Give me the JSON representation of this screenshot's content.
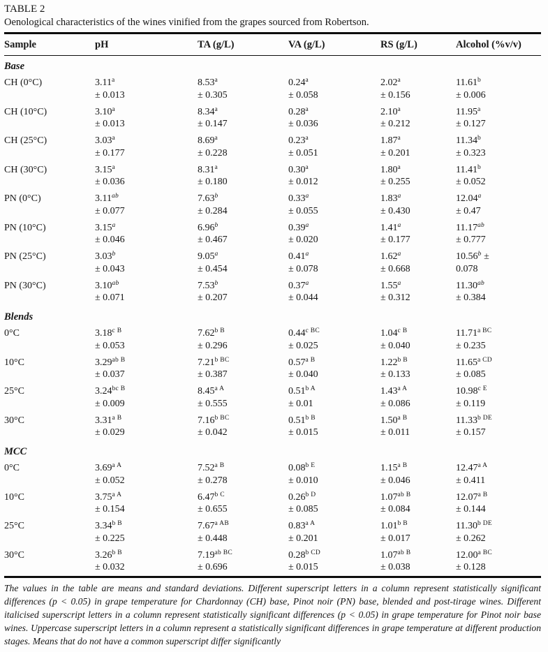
{
  "title": "TABLE 2",
  "subtitle": "Oenological characteristics of the wines vinified from the grapes sourced from Robertson.",
  "columns": [
    "Sample",
    "pH",
    "TA (g/L)",
    "VA (g/L)",
    "RS (g/L)",
    "Alcohol (%v/v)"
  ],
  "sections": [
    {
      "name": "Base",
      "rows": [
        {
          "sample": "CH (0°C)",
          "italic_sup": false,
          "cells": [
            {
              "v": "3.11",
              "s": "a",
              "sd": "± 0.013"
            },
            {
              "v": "8.53",
              "s": "a",
              "sd": "± 0.305"
            },
            {
              "v": "0.24",
              "s": "a",
              "sd": "± 0.058"
            },
            {
              "v": "2.02",
              "s": "a",
              "sd": "± 0.156"
            },
            {
              "v": "11.61",
              "s": "b",
              "sd": "± 0.006"
            }
          ]
        },
        {
          "sample": "CH (10°C)",
          "italic_sup": false,
          "cells": [
            {
              "v": "3.10",
              "s": "a",
              "sd": "± 0.013"
            },
            {
              "v": "8.34",
              "s": "a",
              "sd": "± 0.147"
            },
            {
              "v": "0.28",
              "s": "a",
              "sd": "± 0.036"
            },
            {
              "v": "2.10",
              "s": "a",
              "sd": "± 0.212"
            },
            {
              "v": "11.95",
              "s": "a",
              "sd": "± 0.127"
            }
          ]
        },
        {
          "sample": "CH (25°C)",
          "italic_sup": false,
          "cells": [
            {
              "v": "3.03",
              "s": "a",
              "sd": "± 0.177"
            },
            {
              "v": "8.69",
              "s": "a",
              "sd": "± 0.228"
            },
            {
              "v": "0.23",
              "s": "a",
              "sd": "± 0.051"
            },
            {
              "v": "1.87",
              "s": "a",
              "sd": "± 0.201"
            },
            {
              "v": "11.34",
              "s": "b",
              "sd": "± 0.323"
            }
          ]
        },
        {
          "sample": "CH (30°C)",
          "italic_sup": false,
          "cells": [
            {
              "v": "3.15",
              "s": "a",
              "sd": "± 0.036"
            },
            {
              "v": "8.31",
              "s": "a",
              "sd": "± 0.180"
            },
            {
              "v": "0.30",
              "s": "a",
              "sd": "± 0.012"
            },
            {
              "v": "1.80",
              "s": "a",
              "sd": "± 0.255"
            },
            {
              "v": "11.41",
              "s": "b",
              "sd": "± 0.052"
            }
          ]
        },
        {
          "sample": "PN (0°C)",
          "italic_sup": true,
          "cells": [
            {
              "v": "3.11",
              "s": "ab",
              "sd": "± 0.077"
            },
            {
              "v": "7.63",
              "s": "b",
              "sd": "± 0.284"
            },
            {
              "v": "0.33",
              "s": "a",
              "sd": "± 0.055"
            },
            {
              "v": "1.83",
              "s": "a",
              "sd": "± 0.430"
            },
            {
              "v": "12.04",
              "s": "a",
              "sd": "± 0.47"
            }
          ]
        },
        {
          "sample": "PN (10°C)",
          "italic_sup": true,
          "cells": [
            {
              "v": "3.15",
              "s": "a",
              "sd": "± 0.046"
            },
            {
              "v": "6.96",
              "s": "b",
              "sd": "± 0.467"
            },
            {
              "v": "0.39",
              "s": "a",
              "sd": "± 0.020"
            },
            {
              "v": "1.41",
              "s": "a",
              "sd": "± 0.177"
            },
            {
              "v": "11.17",
              "s": "ab",
              "sd": "± 0.777"
            }
          ]
        },
        {
          "sample": "PN (25°C)",
          "italic_sup": true,
          "cells": [
            {
              "v": "3.03",
              "s": "b",
              "sd": "± 0.043"
            },
            {
              "v": "9.05",
              "s": "a",
              "sd": "± 0.454"
            },
            {
              "v": "0.41",
              "s": "a",
              "sd": "± 0.078"
            },
            {
              "v": "1.62",
              "s": "a",
              "sd": "± 0.668"
            },
            {
              "v": "10.56",
              "s": "b",
              "tail": " ±",
              "sd": "0.078"
            }
          ]
        },
        {
          "sample": "PN (30°C)",
          "italic_sup": true,
          "cells": [
            {
              "v": "3.10",
              "s": "ab",
              "sd": "± 0.071"
            },
            {
              "v": "7.53",
              "s": "b",
              "sd": "± 0.207"
            },
            {
              "v": "0.37",
              "s": "a",
              "sd": "± 0.044"
            },
            {
              "v": "1.55",
              "s": "a",
              "sd": "± 0.312"
            },
            {
              "v": "11.30",
              "s": "ab",
              "sd": "± 0.384"
            }
          ]
        }
      ]
    },
    {
      "name": "Blends",
      "rows": [
        {
          "sample": "0°C",
          "italic_sup": false,
          "cells": [
            {
              "v": "3.18",
              "s": "c B",
              "sd": "± 0.053"
            },
            {
              "v": "7.62",
              "s": "b B",
              "sd": "± 0.296"
            },
            {
              "v": "0.44",
              "s": "c BC",
              "sd": "± 0.025"
            },
            {
              "v": "1.04",
              "s": "c B",
              "sd": "± 0.040"
            },
            {
              "v": "11.71",
              "s": "a BC",
              "sd": "± 0.235"
            }
          ]
        },
        {
          "sample": "10°C",
          "italic_sup": false,
          "cells": [
            {
              "v": "3.29",
              "s": "ab B",
              "sd": "± 0.037"
            },
            {
              "v": "7.21",
              "s": "b BC",
              "sd": "± 0.387"
            },
            {
              "v": "0.57",
              "s": "a B",
              "sd": "± 0.040"
            },
            {
              "v": "1.22",
              "s": "b B",
              "sd": "± 0.133"
            },
            {
              "v": "11.65",
              "s": "a CD",
              "sd": "± 0.085"
            }
          ]
        },
        {
          "sample": "25°C",
          "italic_sup": false,
          "cells": [
            {
              "v": "3.24",
              "s": "bc B",
              "sd": "± 0.009"
            },
            {
              "v": "8.45",
              "s": "a A",
              "sd": "± 0.555"
            },
            {
              "v": "0.51",
              "s": "b A",
              "sd": "± 0.01"
            },
            {
              "v": "1.43",
              "s": "a A",
              "sd": "± 0.086"
            },
            {
              "v": "10.98",
              "s": "c E",
              "sd": "± 0.119"
            }
          ]
        },
        {
          "sample": "30°C",
          "italic_sup": false,
          "cells": [
            {
              "v": "3.31",
              "s": "a B",
              "sd": "± 0.029"
            },
            {
              "v": "7.16",
              "s": "b BC",
              "sd": "± 0.042"
            },
            {
              "v": "0.51",
              "s": "b B",
              "sd": "± 0.015"
            },
            {
              "v": "1.50",
              "s": "a B",
              "sd": "± 0.011"
            },
            {
              "v": "11.33",
              "s": "b DE",
              "sd": "± 0.157"
            }
          ]
        }
      ]
    },
    {
      "name": "MCC",
      "rows": [
        {
          "sample": "0°C",
          "italic_sup": false,
          "cells": [
            {
              "v": "3.69",
              "s": "a A",
              "sd": "± 0.052"
            },
            {
              "v": "7.52",
              "s": "a B",
              "sd": "± 0.278"
            },
            {
              "v": "0.08",
              "s": "b E",
              "sd": "± 0.010"
            },
            {
              "v": "1.15",
              "s": "a B",
              "sd": "± 0.046"
            },
            {
              "v": "12.47",
              "s": "a A",
              "sd": "± 0.411"
            }
          ]
        },
        {
          "sample": "10°C",
          "italic_sup": false,
          "cells": [
            {
              "v": "3.75",
              "s": "a A",
              "sd": "± 0.154"
            },
            {
              "v": "6.47",
              "s": "b C",
              "sd": "± 0.655"
            },
            {
              "v": "0.26",
              "s": "b D",
              "sd": "± 0.085"
            },
            {
              "v": "1.07",
              "s": "ab B",
              "sd": "± 0.084"
            },
            {
              "v": "12.07",
              "s": "a B",
              "sd": "± 0.144"
            }
          ]
        },
        {
          "sample": "25°C",
          "italic_sup": false,
          "cells": [
            {
              "v": "3.34",
              "s": "b B",
              "sd": "± 0.225"
            },
            {
              "v": "7.67",
              "s": "a AB",
              "sd": "± 0.448"
            },
            {
              "v": "0.83",
              "s": "a A",
              "sd": "± 0.201"
            },
            {
              "v": "1.01",
              "s": "b B",
              "sd": "± 0.017"
            },
            {
              "v": "11.30",
              "s": "b DE",
              "sd": "± 0.262"
            }
          ]
        },
        {
          "sample": "30°C",
          "italic_sup": false,
          "cells": [
            {
              "v": "3.26",
              "s": "b B",
              "sd": "± 0.032"
            },
            {
              "v": "7.19",
              "s": "ab BC",
              "sd": "± 0.696"
            },
            {
              "v": "0.28",
              "s": "b CD",
              "sd": "± 0.015"
            },
            {
              "v": "1.07",
              "s": "ab B",
              "sd": "± 0.038"
            },
            {
              "v": "12.00",
              "s": "a BC",
              "sd": "± 0.128"
            }
          ]
        }
      ]
    }
  ],
  "footnote": "The values in the table are means and standard deviations. Different superscript letters in a column represent statistically significant differences (p < 0.05) in grape temperature for Chardonnay (CH) base, Pinot noir (PN) base, blended and post-tirage wines. Different italicised superscript letters in a column represent statistically significant differences (p < 0.05) in grape temperature for Pinot noir base wines. Uppercase superscript letters in a column represent a statistically significant differences in grape temperature at different production stages. Means that do not have a common superscript differ significantly"
}
